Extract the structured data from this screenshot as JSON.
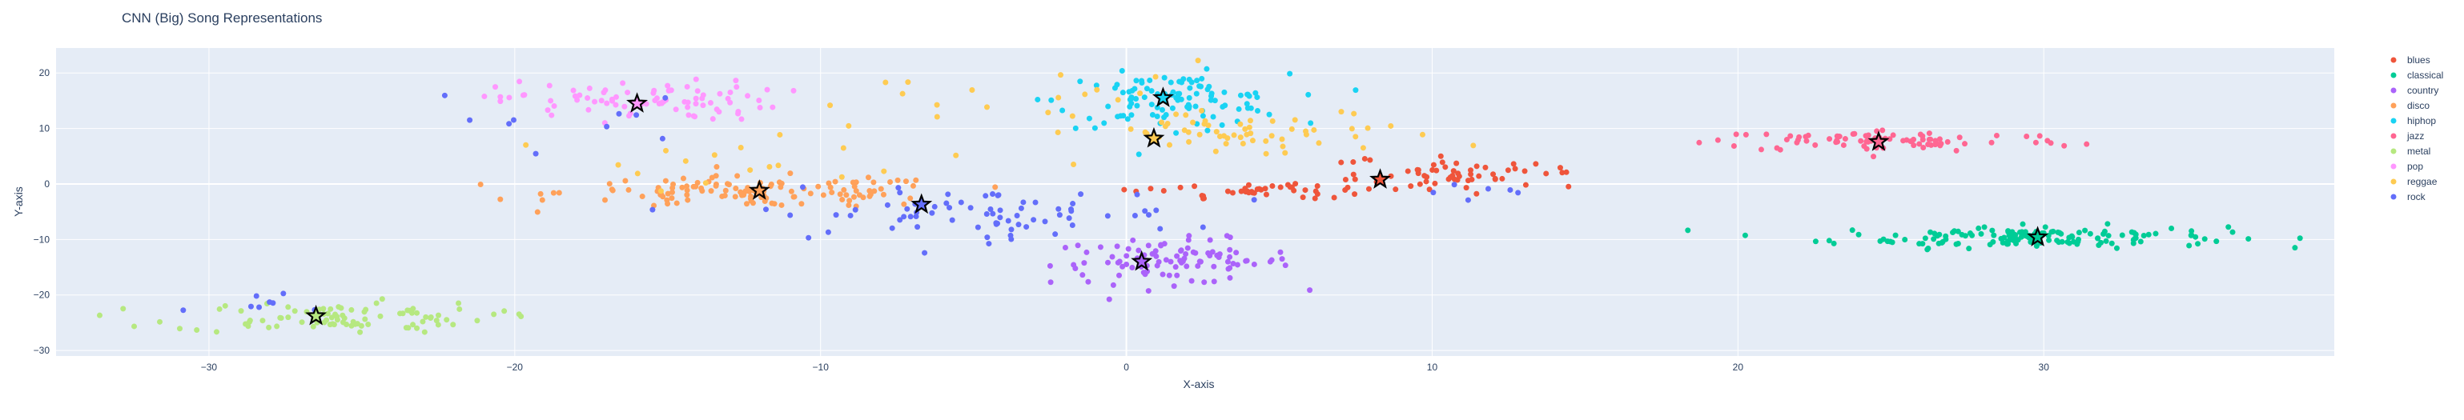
{
  "chart_data": {
    "type": "scatter",
    "title": "CNN (Big) Song Representations",
    "xlabel": "X-axis",
    "ylabel": "Y-axis",
    "xlim": [
      -35,
      39.5
    ],
    "ylim": [
      -31,
      24.5
    ],
    "xticks": [
      -30,
      -20,
      -10,
      0,
      10,
      20,
      30
    ],
    "yticks": [
      -30,
      -20,
      -10,
      0,
      10,
      20
    ],
    "grid": true,
    "legend_position": "right",
    "centroid_marker": "star",
    "series": [
      {
        "name": "blues",
        "color": "#EF553B",
        "centroid": [
          8.3,
          0.8
        ],
        "clusters": [
          {
            "cx": 10.5,
            "cy": 2.2,
            "sx": 1.8,
            "sy": 1.6,
            "n": 60
          },
          {
            "cx": 4.5,
            "cy": -1.2,
            "sx": 2.0,
            "sy": 0.9,
            "n": 45
          }
        ]
      },
      {
        "name": "classical",
        "color": "#00CC96",
        "centroid": [
          29.8,
          -9.6
        ],
        "clusters": [
          {
            "cx": 29.5,
            "cy": -9.5,
            "sx": 3.2,
            "sy": 1.0,
            "n": 150
          }
        ]
      },
      {
        "name": "country",
        "color": "#AB63FA",
        "centroid": [
          0.5,
          -14.0
        ],
        "clusters": [
          {
            "cx": 1.5,
            "cy": -14.0,
            "sx": 2.0,
            "sy": 2.0,
            "n": 100
          }
        ]
      },
      {
        "name": "disco",
        "color": "#FFA15A",
        "centroid": [
          -12.0,
          -1.2
        ],
        "clusters": [
          {
            "cx": -12.0,
            "cy": -1.5,
            "sx": 3.2,
            "sy": 1.4,
            "n": 130
          }
        ]
      },
      {
        "name": "hiphop",
        "color": "#19D3F3",
        "centroid": [
          1.2,
          15.5
        ],
        "clusters": [
          {
            "cx": 1.5,
            "cy": 15.0,
            "sx": 1.9,
            "sy": 2.4,
            "n": 110
          }
        ]
      },
      {
        "name": "jazz",
        "color": "#FF6692",
        "centroid": [
          24.6,
          7.6
        ],
        "clusters": [
          {
            "cx": 25.0,
            "cy": 7.8,
            "sx": 3.0,
            "sy": 1.0,
            "n": 85
          }
        ]
      },
      {
        "name": "metal",
        "color": "#B6E880",
        "centroid": [
          -26.5,
          -23.8
        ],
        "clusters": [
          {
            "cx": -26.0,
            "cy": -24.0,
            "sx": 2.6,
            "sy": 1.4,
            "n": 90
          }
        ]
      },
      {
        "name": "pop",
        "color": "#FF97FF",
        "centroid": [
          -16.0,
          14.5
        ],
        "clusters": [
          {
            "cx": -16.0,
            "cy": 15.0,
            "sx": 2.3,
            "sy": 1.8,
            "n": 85
          }
        ]
      },
      {
        "name": "reggae",
        "color": "#FECB52",
        "centroid": [
          0.9,
          8.2
        ],
        "clusters": [
          {
            "cx": 4.5,
            "cy": 9.0,
            "sx": 3.0,
            "sy": 2.2,
            "n": 55
          },
          {
            "cx": -3.5,
            "cy": 14.0,
            "sx": 3.5,
            "sy": 4.0,
            "n": 25
          },
          {
            "cx": -13.0,
            "cy": 4.0,
            "sx": 3.5,
            "sy": 2.5,
            "n": 15
          }
        ]
      },
      {
        "name": "rock",
        "color": "#636EFA",
        "centroid": [
          -6.7,
          -3.7
        ],
        "clusters": [
          {
            "cx": -5.0,
            "cy": -5.5,
            "sx": 3.5,
            "sy": 2.2,
            "n": 75
          },
          {
            "cx": -18.0,
            "cy": 12.0,
            "sx": 2.5,
            "sy": 2.5,
            "n": 10
          },
          {
            "cx": -27.5,
            "cy": -22.0,
            "sx": 1.5,
            "sy": 1.5,
            "n": 8
          },
          {
            "cx": 12.5,
            "cy": -1.5,
            "sx": 1.5,
            "sy": 1.0,
            "n": 6
          }
        ]
      }
    ]
  }
}
